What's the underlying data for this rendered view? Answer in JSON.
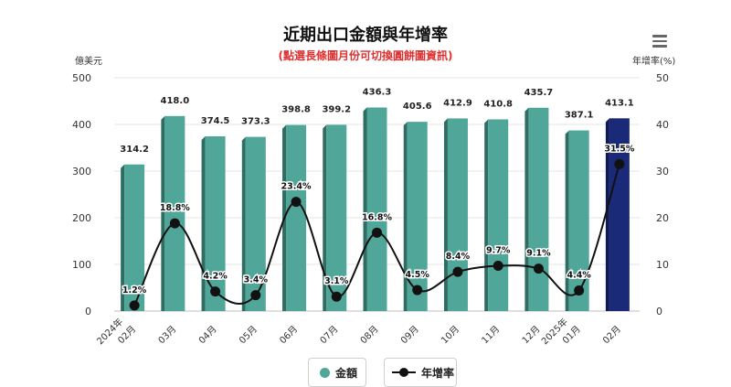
{
  "chart_data": {
    "type": "bar+line",
    "title": "近期出口金額與年增率",
    "subtitle": "(點選長條圖月份可切換圓餅圖資訊)",
    "left_axis": {
      "label": "億美元",
      "ticks": [
        "0",
        "100",
        "200",
        "300",
        "400",
        "500"
      ],
      "range": [
        0,
        500
      ]
    },
    "right_axis": {
      "label": "年增率(%)",
      "ticks": [
        "0",
        "10",
        "20",
        "30",
        "40",
        "50"
      ],
      "range": [
        0,
        50
      ]
    },
    "categories": [
      "2024年 02月",
      "03月",
      "04月",
      "05月",
      "06月",
      "07月",
      "08月",
      "09月",
      "10月",
      "11月",
      "12月",
      "2025年 01月",
      "02月"
    ],
    "category_labels": [
      "2024年",
      "02月",
      "03月",
      "04月",
      "05月",
      "06月",
      "07月",
      "08月",
      "09月",
      "10月",
      "11月",
      "12月",
      "2025年",
      "01月",
      "02月"
    ],
    "series": [
      {
        "name": "金額",
        "type": "bar",
        "axis": "left",
        "color": "#50a698",
        "highlight_color": "#1a2a78",
        "values": [
          314.2,
          418.0,
          374.5,
          373.3,
          398.8,
          399.2,
          436.3,
          405.6,
          412.9,
          410.8,
          435.7,
          387.1,
          413.1
        ],
        "labels": [
          "314.2",
          "418.0",
          "374.5",
          "373.3",
          "398.8",
          "399.2",
          "436.3",
          "405.6",
          "412.9",
          "410.8",
          "435.7",
          "387.1",
          "413.1"
        ],
        "highlighted_index": 12
      },
      {
        "name": "年增率",
        "type": "line",
        "axis": "right",
        "color": "#111111",
        "values": [
          1.2,
          18.8,
          4.2,
          3.4,
          23.4,
          3.1,
          16.8,
          4.5,
          8.4,
          9.7,
          9.1,
          4.4,
          31.5
        ],
        "labels": [
          "1.2%",
          "18.8%",
          "4.2%",
          "3.4%",
          "23.4%",
          "3.1%",
          "16.8%",
          "4.5%",
          "8.4%",
          "9.7%",
          "9.1%",
          "4.4%",
          "31.5%"
        ]
      }
    ],
    "grid": true,
    "legend": "bottom-center"
  },
  "menu_icon": "hamburger-menu-icon"
}
